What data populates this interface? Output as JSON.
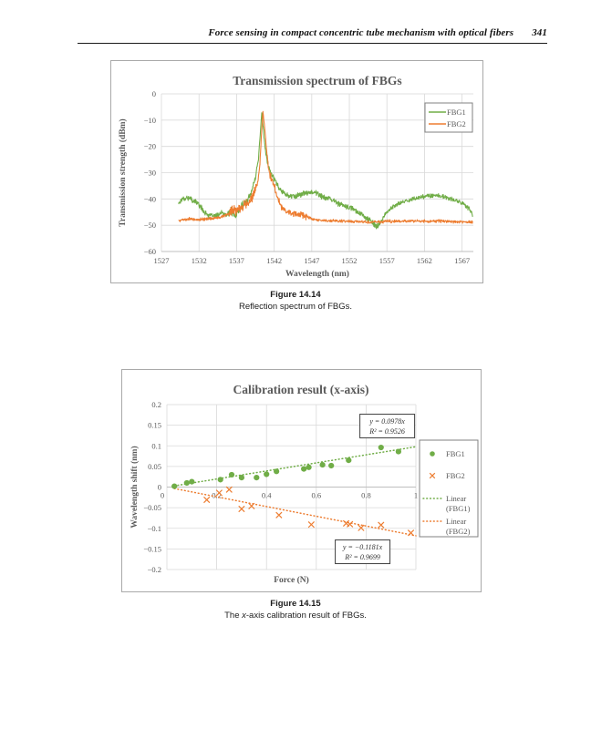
{
  "header": {
    "title": "Force sensing in compact concentric tube mechanism with optical fibers",
    "page_number": "341"
  },
  "figures": {
    "fig1": {
      "caption_label": "Figure 14.14",
      "caption_text": "Reflection spectrum of FBGs."
    },
    "fig2": {
      "caption_label": "Figure 14.15",
      "caption_prefix": "The ",
      "caption_italic": "x",
      "caption_rest": "-axis calibration result of FBGs."
    }
  },
  "colors": {
    "series_green": "#70AD47",
    "series_orange": "#ED7D31",
    "grid": "#D9D9D9",
    "axis_line": "#BFBFBF",
    "chart_text": "#595959",
    "legend_border": "#808080",
    "annotation_border": "#404040"
  },
  "chart_data": [
    {
      "type": "line",
      "title": "Transmission spectrum of FBGs",
      "xlabel": "Wavelength (nm)",
      "ylabel": "Transmission strength (dBm)",
      "xlim": [
        1527,
        1568.5
      ],
      "ylim": [
        -60,
        0
      ],
      "grid": true,
      "xticks": [
        {
          "v": 1527,
          "label": "1527"
        },
        {
          "v": 1532,
          "label": "1532"
        },
        {
          "v": 1537,
          "label": "1537"
        },
        {
          "v": 1542,
          "label": "1542"
        },
        {
          "v": 1547,
          "label": "1547"
        },
        {
          "v": 1552,
          "label": "1552"
        },
        {
          "v": 1557,
          "label": "1557"
        },
        {
          "v": 1562,
          "label": "1562"
        },
        {
          "v": 1567,
          "label": "1567"
        }
      ],
      "yticks": [
        {
          "v": 0,
          "label": "0"
        },
        {
          "v": -10,
          "label": "−10"
        },
        {
          "v": -20,
          "label": "−20"
        },
        {
          "v": -30,
          "label": "−30"
        },
        {
          "v": -40,
          "label": "−40"
        },
        {
          "v": -50,
          "label": "−50"
        },
        {
          "v": -60,
          "label": "−60"
        }
      ],
      "legend": {
        "position": "top-right",
        "entries": [
          {
            "label": "FBG1",
            "color": "#70AD47"
          },
          {
            "label": "FBG2",
            "color": "#ED7D31"
          }
        ]
      },
      "series": [
        {
          "name": "FBG1",
          "color": "#70AD47",
          "noise_db": 1.0,
          "seed": 17,
          "noise_zones": [
            {
              "from": 1529.3,
              "to": 1532.5,
              "amp": 1.3
            },
            {
              "from": 1535.5,
              "to": 1538.6,
              "amp": 1.9
            },
            {
              "from": 1543,
              "to": 1553,
              "amp": 1.3
            },
            {
              "from": 1553,
              "to": 1556.5,
              "amp": 1.4
            }
          ],
          "keypoints": [
            [
              1529.3,
              -41.5
            ],
            [
              1529.8,
              -39.8
            ],
            [
              1530.5,
              -39.5
            ],
            [
              1531.2,
              -40.5
            ],
            [
              1532,
              -42
            ],
            [
              1532.7,
              -45
            ],
            [
              1533.3,
              -46.3
            ],
            [
              1534.2,
              -46.5
            ],
            [
              1535,
              -45.2
            ],
            [
              1535.7,
              -46.3
            ],
            [
              1536.2,
              -44.5
            ],
            [
              1536.8,
              -46.5
            ],
            [
              1537.3,
              -44
            ],
            [
              1537.8,
              -42.5
            ],
            [
              1538.4,
              -40.5
            ],
            [
              1539,
              -37
            ],
            [
              1539.5,
              -32
            ],
            [
              1539.9,
              -25
            ],
            [
              1540.15,
              -15
            ],
            [
              1540.35,
              -7.3
            ],
            [
              1540.55,
              -13
            ],
            [
              1540.8,
              -21
            ],
            [
              1541.1,
              -26.5
            ],
            [
              1541.5,
              -29.5
            ],
            [
              1542,
              -32.5
            ],
            [
              1542.6,
              -35.5
            ],
            [
              1543.2,
              -37.5
            ],
            [
              1544,
              -39
            ],
            [
              1545,
              -38.8
            ],
            [
              1546,
              -37.8
            ],
            [
              1547,
              -37.2
            ],
            [
              1547.8,
              -38
            ],
            [
              1548.6,
              -39.5
            ],
            [
              1549.5,
              -40.2
            ],
            [
              1550.5,
              -41.5
            ],
            [
              1551.5,
              -43
            ],
            [
              1552.5,
              -43.8
            ],
            [
              1553.5,
              -45.5
            ],
            [
              1554.5,
              -47.5
            ],
            [
              1555.3,
              -49.8
            ],
            [
              1555.8,
              -50.5
            ],
            [
              1556.3,
              -48
            ],
            [
              1557,
              -45
            ],
            [
              1557.8,
              -43
            ],
            [
              1558.8,
              -41.5
            ],
            [
              1560,
              -40.3
            ],
            [
              1561.2,
              -39.5
            ],
            [
              1562.5,
              -38.7
            ],
            [
              1563.5,
              -38.6
            ],
            [
              1564.5,
              -39.2
            ],
            [
              1565.5,
              -40
            ],
            [
              1566.5,
              -41
            ],
            [
              1567.3,
              -42
            ],
            [
              1568,
              -44
            ],
            [
              1568.4,
              -46.5
            ]
          ]
        },
        {
          "name": "FBG2",
          "color": "#ED7D31",
          "noise_db": 0.7,
          "seed": 5,
          "noise_zones": [
            {
              "from": 1536,
              "to": 1539.6,
              "amp": 2.6
            },
            {
              "from": 1541.2,
              "to": 1546.5,
              "amp": 1.6
            },
            {
              "from": 1547,
              "to": 1568.4,
              "amp": 0.45
            }
          ],
          "keypoints": [
            [
              1529.3,
              -48.2
            ],
            [
              1530.5,
              -47.6
            ],
            [
              1532,
              -47.8
            ],
            [
              1533.5,
              -47.5
            ],
            [
              1534.5,
              -47.2
            ],
            [
              1535.5,
              -46.2
            ],
            [
              1536.5,
              -45
            ],
            [
              1537.3,
              -43.8
            ],
            [
              1538,
              -42.5
            ],
            [
              1538.7,
              -41
            ],
            [
              1539.3,
              -38.5
            ],
            [
              1539.8,
              -34
            ],
            [
              1540.1,
              -27
            ],
            [
              1540.3,
              -16
            ],
            [
              1540.5,
              -6.7
            ],
            [
              1540.7,
              -12
            ],
            [
              1540.95,
              -20
            ],
            [
              1541.2,
              -27
            ],
            [
              1541.5,
              -31.5
            ],
            [
              1541.8,
              -33.5
            ],
            [
              1542.1,
              -36
            ],
            [
              1542.5,
              -40
            ],
            [
              1543,
              -43
            ],
            [
              1543.8,
              -45
            ],
            [
              1544.8,
              -45.5
            ],
            [
              1545.8,
              -46
            ],
            [
              1546.6,
              -47.3
            ],
            [
              1547.5,
              -48
            ],
            [
              1549,
              -48.3
            ],
            [
              1551,
              -48.4
            ],
            [
              1553,
              -48.6
            ],
            [
              1555,
              -48.9
            ],
            [
              1556.5,
              -48.6
            ],
            [
              1558,
              -48.5
            ],
            [
              1560,
              -48.4
            ],
            [
              1562,
              -48.5
            ],
            [
              1564,
              -48.4
            ],
            [
              1566,
              -48.6
            ],
            [
              1568.4,
              -48.8
            ]
          ]
        }
      ]
    },
    {
      "type": "scatter",
      "title": "Calibration result (x-axis)",
      "xlabel": "Force (N)",
      "ylabel": "Wavelength shift (nm)",
      "xlim": [
        0,
        1
      ],
      "ylim": [
        -0.2,
        0.2
      ],
      "grid": true,
      "xticks": [
        {
          "v": 0,
          "label": "0"
        },
        {
          "v": 0.2,
          "label": "0.2"
        },
        {
          "v": 0.4,
          "label": "0.4"
        },
        {
          "v": 0.6,
          "label": "0.6"
        },
        {
          "v": 0.8,
          "label": "0.8"
        },
        {
          "v": 1,
          "label": "1"
        }
      ],
      "yticks": [
        {
          "v": 0.2,
          "label": "0.2"
        },
        {
          "v": 0.15,
          "label": "0.15"
        },
        {
          "v": 0.1,
          "label": "0.1"
        },
        {
          "v": 0.05,
          "label": "0.05"
        },
        {
          "v": 0,
          "label": "0"
        },
        {
          "v": -0.05,
          "label": "−0.05"
        },
        {
          "v": -0.1,
          "label": "−0.1"
        },
        {
          "v": -0.15,
          "label": "−0.15"
        },
        {
          "v": -0.2,
          "label": "−0.2"
        }
      ],
      "series": [
        {
          "name": "FBG1",
          "marker": "circle",
          "color": "#70AD47",
          "points": [
            [
              0.03,
              0.002
            ],
            [
              0.08,
              0.01
            ],
            [
              0.1,
              0.013
            ],
            [
              0.215,
              0.018
            ],
            [
              0.26,
              0.03
            ],
            [
              0.3,
              0.023
            ],
            [
              0.36,
              0.023
            ],
            [
              0.4,
              0.031
            ],
            [
              0.44,
              0.038
            ],
            [
              0.55,
              0.044
            ],
            [
              0.57,
              0.048
            ],
            [
              0.625,
              0.054
            ],
            [
              0.66,
              0.052
            ],
            [
              0.73,
              0.065
            ],
            [
              0.86,
              0.096
            ],
            [
              0.93,
              0.086
            ]
          ]
        },
        {
          "name": "FBG2",
          "marker": "x",
          "color": "#ED7D31",
          "points": [
            [
              0.16,
              -0.031
            ],
            [
              0.21,
              -0.014
            ],
            [
              0.25,
              -0.006
            ],
            [
              0.3,
              -0.053
            ],
            [
              0.34,
              -0.046
            ],
            [
              0.45,
              -0.068
            ],
            [
              0.58,
              -0.091
            ],
            [
              0.72,
              -0.088
            ],
            [
              0.735,
              -0.09
            ],
            [
              0.78,
              -0.099
            ],
            [
              0.86,
              -0.092
            ],
            [
              0.98,
              -0.111
            ]
          ]
        }
      ],
      "trendlines": [
        {
          "name": "Linear (FBG1)",
          "color": "#70AD47",
          "slope": 0.0978,
          "x_start": 0.03,
          "x_end": 1.0
        },
        {
          "name": "Linear (FBG2)",
          "color": "#ED7D31",
          "slope": -0.1181,
          "x_start": 0.03,
          "x_end": 1.0
        }
      ],
      "annotations": [
        {
          "line1": "y = 0.0978x",
          "line2": "R² = 0.9526",
          "cx": 0.885,
          "cy": 0.148
        },
        {
          "line1": "y = −0.1181x",
          "line2": "R² = 0.9699",
          "cx": 0.786,
          "cy": -0.157
        }
      ],
      "legend": {
        "position": "right",
        "entries": [
          {
            "label": "FBG1",
            "marker": "circle",
            "color": "#70AD47"
          },
          {
            "label": "FBG2",
            "marker": "x",
            "color": "#ED7D31"
          },
          {
            "label": "Linear",
            "label2": "(FBG1)",
            "marker": "dotted",
            "color": "#70AD47"
          },
          {
            "label": "Linear",
            "label2": "(FBG2)",
            "marker": "dotted",
            "color": "#ED7D31"
          }
        ]
      }
    }
  ]
}
